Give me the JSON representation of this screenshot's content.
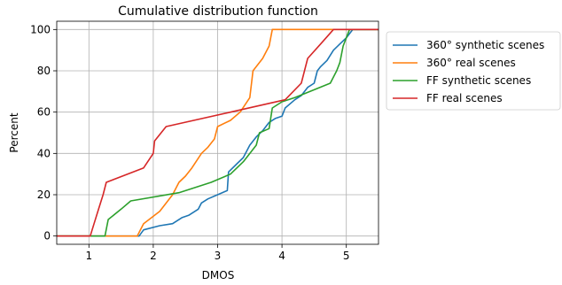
{
  "chart_data": {
    "type": "line",
    "title": "Cumulative distribution function",
    "xlabel": "DMOS",
    "ylabel": "Percent",
    "xlim": [
      0.5,
      5.5
    ],
    "ylim": [
      -4,
      104
    ],
    "xticks": [
      "1",
      "2",
      "3",
      "4",
      "5"
    ],
    "yticks": [
      "0",
      "20",
      "40",
      "60",
      "80",
      "100"
    ],
    "grid": true,
    "legend_position": "outside-right-top",
    "series": [
      {
        "name": "360° synthetic scenes",
        "color": "#1f77b4",
        "x": [
          0.5,
          1.78,
          1.85,
          2.1,
          2.3,
          2.45,
          2.55,
          2.7,
          2.75,
          2.85,
          3.0,
          3.15,
          3.17,
          3.3,
          3.4,
          3.5,
          3.6,
          3.7,
          3.8,
          3.9,
          4.0,
          4.05,
          4.2,
          4.3,
          4.4,
          4.5,
          4.55,
          4.6,
          4.7,
          4.8,
          4.9,
          5.0,
          5.1,
          5.5
        ],
        "y": [
          0,
          0,
          3,
          5,
          6,
          9,
          10,
          13,
          16,
          18,
          20,
          22,
          31,
          35,
          38,
          44,
          48,
          51,
          55,
          57,
          58,
          62,
          66,
          68,
          72,
          74,
          80,
          82,
          85,
          90,
          93,
          96,
          100,
          100
        ]
      },
      {
        "name": "360° real scenes",
        "color": "#ff7f0e",
        "x": [
          0.5,
          1.75,
          1.85,
          2.1,
          2.3,
          2.4,
          2.5,
          2.6,
          2.75,
          2.85,
          2.95,
          3.0,
          3.2,
          3.35,
          3.5,
          3.55,
          3.7,
          3.8,
          3.85,
          5.5
        ],
        "y": [
          0,
          0,
          6,
          12,
          20,
          26,
          29,
          33,
          40,
          43,
          47,
          53,
          56,
          60,
          67,
          80,
          86,
          92,
          100,
          100
        ]
      },
      {
        "name": "FF synthetic scenes",
        "color": "#2ca02c",
        "x": [
          0.5,
          1.25,
          1.3,
          1.5,
          1.65,
          2.4,
          2.9,
          3.2,
          3.4,
          3.6,
          3.65,
          3.8,
          3.85,
          4.0,
          4.2,
          4.75,
          4.85,
          4.9,
          4.95,
          5.05,
          5.5
        ],
        "y": [
          0,
          0,
          8,
          13,
          17,
          21,
          26,
          30,
          36,
          44,
          50,
          52,
          62,
          65,
          67,
          74,
          80,
          84,
          92,
          100,
          100
        ]
      },
      {
        "name": "FF real scenes",
        "color": "#d62728",
        "x": [
          0.5,
          1.02,
          1.08,
          1.15,
          1.22,
          1.27,
          1.85,
          2.0,
          2.02,
          2.2,
          3.2,
          4.05,
          4.3,
          4.4,
          4.6,
          4.8,
          5.5
        ],
        "y": [
          0,
          0,
          6,
          13,
          20,
          26,
          33,
          40,
          46,
          53,
          60,
          66,
          74,
          86,
          93,
          100,
          100
        ]
      }
    ]
  }
}
